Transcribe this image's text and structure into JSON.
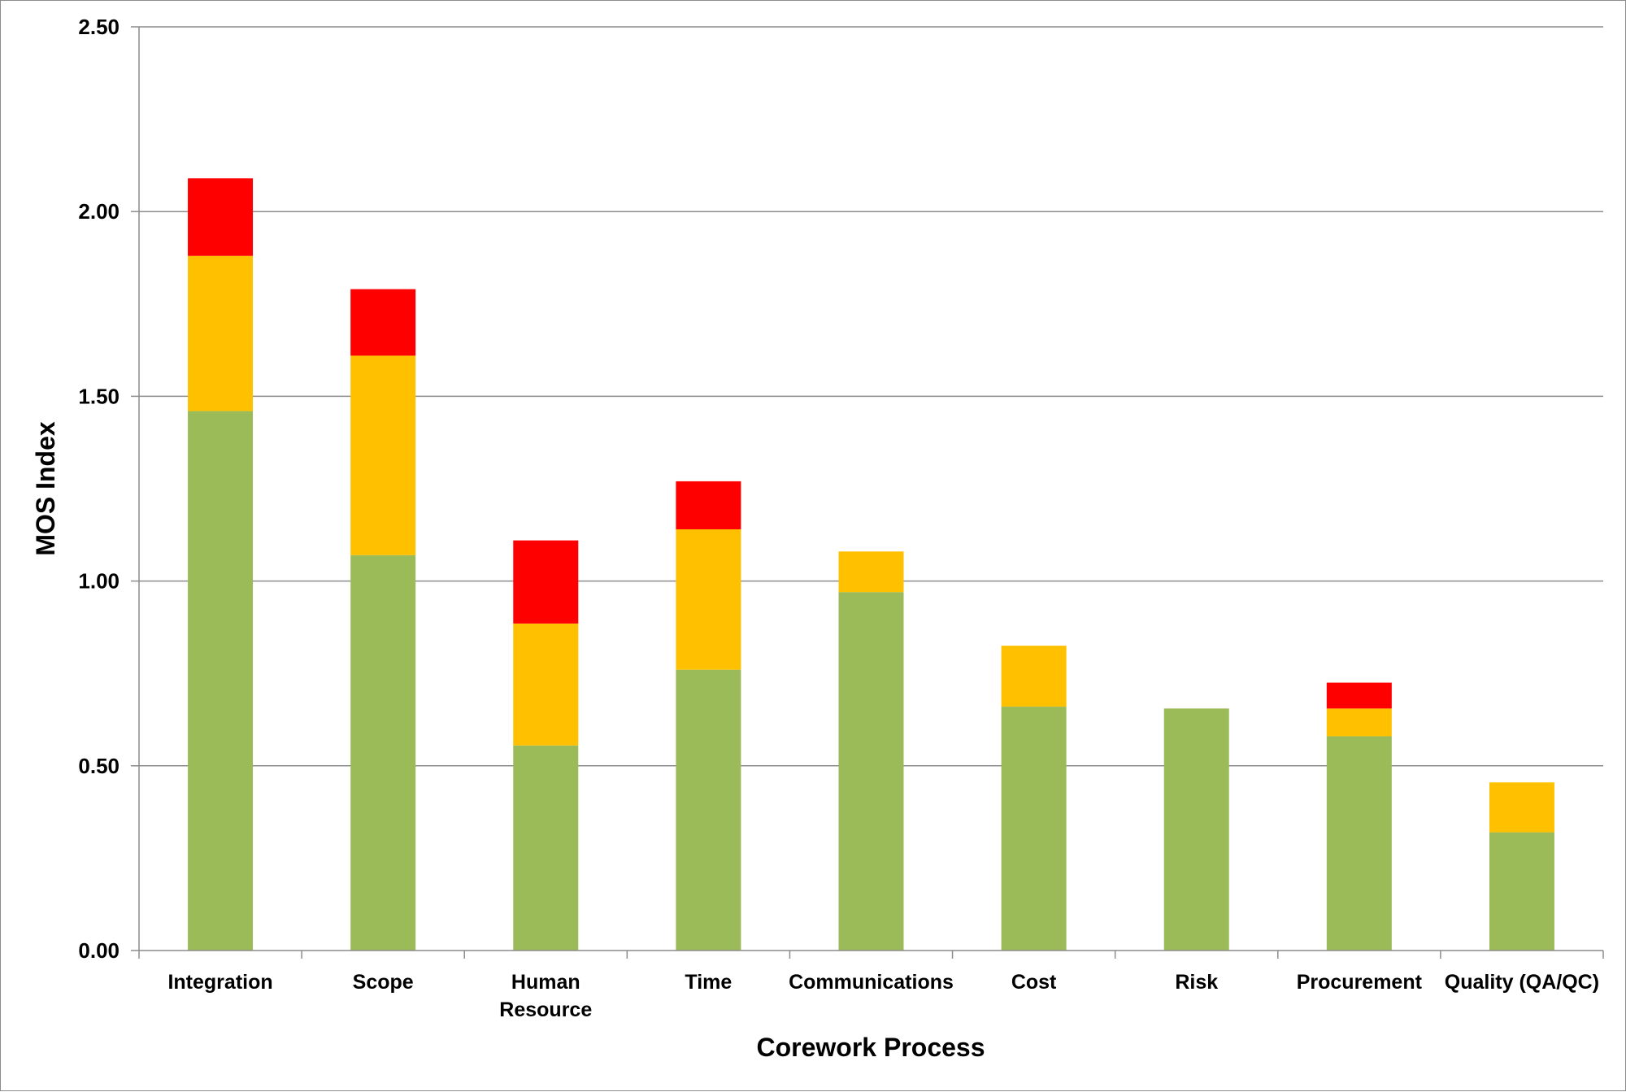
{
  "chart_data": {
    "type": "bar",
    "stacked": true,
    "title": "",
    "xlabel": "Corework Process",
    "ylabel": "MOS Index",
    "ylim": [
      0,
      2.5
    ],
    "yticks": [
      "0.00",
      "0.50",
      "1.00",
      "1.50",
      "2.00",
      "2.50"
    ],
    "grid": true,
    "legend": "none",
    "categories": [
      [
        "Integration"
      ],
      [
        "Scope"
      ],
      [
        "Human",
        "Resource"
      ],
      [
        "Time"
      ],
      [
        "Communications"
      ],
      [
        "Cost"
      ],
      [
        "Risk"
      ],
      [
        "Procurement"
      ],
      [
        "Quality (QA/QC)"
      ]
    ],
    "series": [
      {
        "color": "#9bbb59",
        "values": [
          1.46,
          1.07,
          0.555,
          0.76,
          0.97,
          0.66,
          0.655,
          0.58,
          0.32
        ]
      },
      {
        "color": "#ffc000",
        "values": [
          0.42,
          0.54,
          0.33,
          0.38,
          0.11,
          0.165,
          0.0,
          0.075,
          0.135
        ]
      },
      {
        "color": "#ff0000",
        "values": [
          0.21,
          0.18,
          0.225,
          0.13,
          0.0,
          0.0,
          0.0,
          0.07,
          0.0
        ]
      }
    ]
  }
}
